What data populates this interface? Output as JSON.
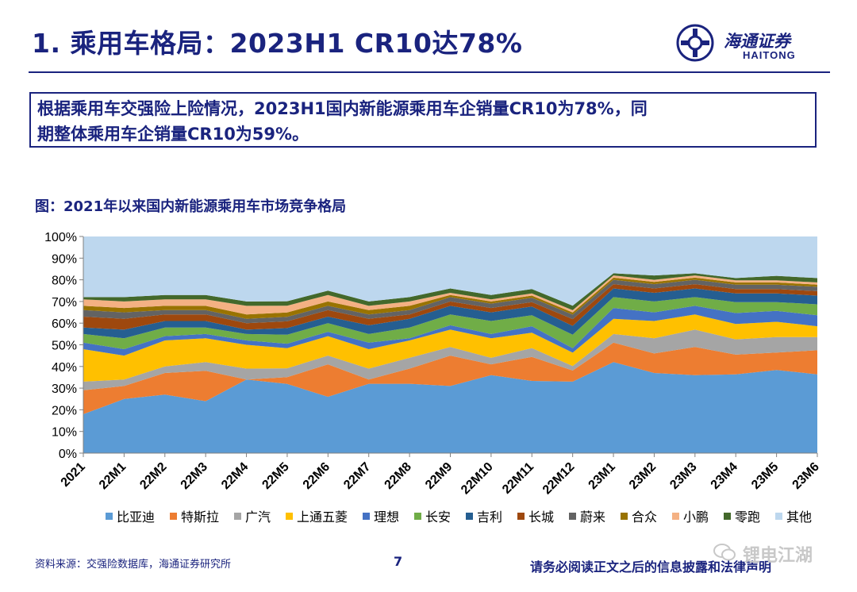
{
  "header": {
    "title": "1. 乘用车格局：2023H1 CR10达78%",
    "logo_cn": "海通证券",
    "logo_en": "HAITONG"
  },
  "summary": {
    "line1": "根据乘用车交强险上险情况，2023H1国内新能源乘用车企销量CR10为78%，同",
    "line2": "期整体乘用车企销量CR10为59%。"
  },
  "figure": {
    "title": "图：2021年以来国内新能源乘用车市场竞争格局"
  },
  "footer": {
    "source": "资料来源：交强险数据库，海通证券研究所",
    "page": "7",
    "disclaimer": "请务必阅读正文之后的信息披露和法律声明",
    "watermark": "锂电江湖"
  },
  "colors": {
    "brand": "#1a237e"
  },
  "chart_data": {
    "type": "area",
    "stacked": true,
    "percent": true,
    "categories": [
      "2021",
      "22M1",
      "22M2",
      "22M3",
      "22M4",
      "22M5",
      "22M6",
      "22M7",
      "22M8",
      "22M9",
      "22M10",
      "22M11",
      "22M12",
      "23M1",
      "23M2",
      "23M3",
      "23M4",
      "23M5",
      "23M6"
    ],
    "yticks": [
      "0%",
      "10%",
      "20%",
      "30%",
      "40%",
      "50%",
      "60%",
      "70%",
      "80%",
      "90%",
      "100%"
    ],
    "ylim": [
      0,
      100
    ],
    "legend_position": "bottom",
    "series": [
      {
        "name": "比亚迪",
        "color": "#5b9bd5",
        "values": [
          18,
          25,
          27,
          24,
          34,
          31,
          26,
          32,
          32,
          31,
          36,
          33,
          32,
          42,
          37,
          36,
          36,
          38,
          36
        ]
      },
      {
        "name": "特斯拉",
        "color": "#ed7d31",
        "values": [
          11,
          6,
          10,
          14,
          0,
          3,
          15,
          2,
          7,
          14,
          5,
          11,
          5,
          9,
          9,
          13,
          9,
          8,
          11
        ]
      },
      {
        "name": "广汽",
        "color": "#a5a5a5",
        "values": [
          4,
          3,
          3,
          4,
          5,
          4,
          4,
          5,
          5,
          4,
          3,
          4,
          2,
          4,
          7,
          8,
          7,
          7,
          6
        ]
      },
      {
        "name": "上通五菱",
        "color": "#ffc000",
        "values": [
          15,
          11,
          12,
          11,
          11,
          9,
          9,
          9,
          8,
          8,
          9,
          7,
          6,
          7,
          8,
          7,
          7,
          7,
          5
        ]
      },
      {
        "name": "理想",
        "color": "#4472c4",
        "values": [
          3,
          3,
          2,
          2,
          2,
          2,
          2,
          3,
          1,
          2,
          2,
          3,
          2,
          5,
          4,
          4,
          5,
          5,
          5
        ]
      },
      {
        "name": "长安",
        "color": "#70ad47",
        "values": [
          4,
          5,
          4,
          3,
          3,
          4,
          4,
          4,
          5,
          5,
          6,
          5,
          6,
          5,
          5,
          4,
          5,
          4,
          5
        ]
      },
      {
        "name": "吉利",
        "color": "#255e91",
        "values": [
          3,
          4,
          3,
          3,
          2,
          3,
          3,
          4,
          4,
          4,
          4,
          4,
          4,
          4,
          4,
          4,
          4,
          4,
          4
        ]
      },
      {
        "name": "长城",
        "color": "#9e480e",
        "values": [
          5,
          5,
          3,
          3,
          3,
          3,
          3,
          3,
          2,
          2,
          2,
          2,
          3,
          2,
          2,
          2,
          2,
          2,
          2
        ]
      },
      {
        "name": "蔚来",
        "color": "#636363",
        "values": [
          3,
          3,
          2,
          2,
          2,
          2,
          2,
          2,
          2,
          2,
          2,
          2,
          2,
          2,
          2,
          2,
          2,
          2,
          2
        ]
      },
      {
        "name": "合众",
        "color": "#997300",
        "values": [
          2,
          2,
          2,
          2,
          2,
          2,
          2,
          2,
          2,
          1,
          1,
          1,
          1,
          1,
          1,
          1,
          1,
          1,
          1
        ]
      },
      {
        "name": "小鹏",
        "color": "#f4b183",
        "values": [
          3,
          3,
          3,
          3,
          4,
          3,
          3,
          2,
          2,
          1,
          1,
          1,
          1,
          1,
          1,
          1,
          1,
          1,
          1
        ]
      },
      {
        "name": "零跑",
        "color": "#43682b",
        "values": [
          1,
          2,
          2,
          2,
          2,
          2,
          2,
          2,
          2,
          2,
          2,
          2,
          2,
          1,
          2,
          1,
          1,
          2,
          2
        ]
      },
      {
        "name": "其他",
        "color": "#bdd7ee",
        "values": [
          28,
          28,
          27,
          27,
          30,
          29,
          25,
          30,
          28,
          24,
          27,
          24,
          31,
          17,
          18,
          17,
          19,
          18,
          19
        ]
      }
    ]
  }
}
